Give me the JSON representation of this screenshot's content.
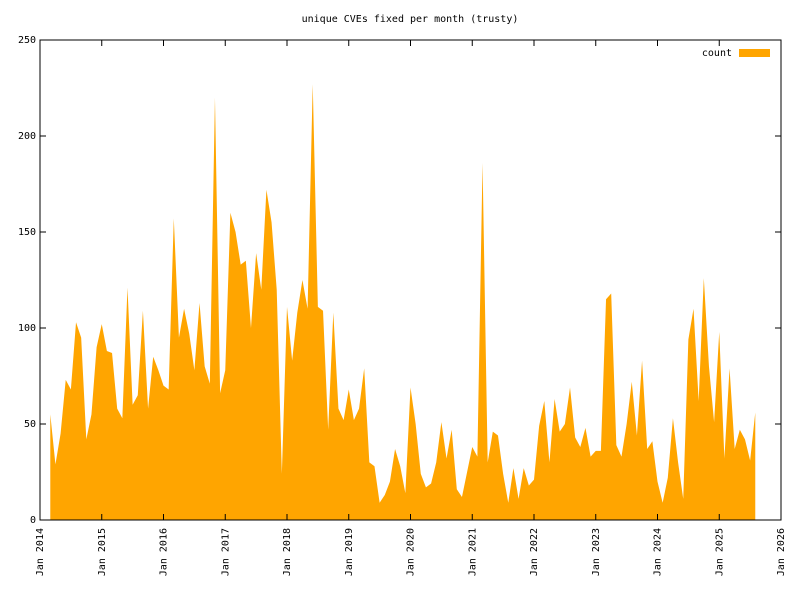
{
  "chart_data": {
    "type": "area",
    "title": "unique CVEs fixed per month (trusty)",
    "x": [
      "2014-03",
      "2014-04",
      "2014-05",
      "2014-06",
      "2014-07",
      "2014-08",
      "2014-09",
      "2014-10",
      "2014-11",
      "2014-12",
      "2015-01",
      "2015-02",
      "2015-03",
      "2015-04",
      "2015-05",
      "2015-06",
      "2015-07",
      "2015-08",
      "2015-09",
      "2015-10",
      "2015-11",
      "2015-12",
      "2016-01",
      "2016-02",
      "2016-03",
      "2016-04",
      "2016-05",
      "2016-06",
      "2016-07",
      "2016-08",
      "2016-09",
      "2016-10",
      "2016-11",
      "2016-12",
      "2017-01",
      "2017-02",
      "2017-03",
      "2017-04",
      "2017-05",
      "2017-06",
      "2017-07",
      "2017-08",
      "2017-09",
      "2017-10",
      "2017-11",
      "2017-12",
      "2018-01",
      "2018-02",
      "2018-03",
      "2018-04",
      "2018-05",
      "2018-06",
      "2018-07",
      "2018-08",
      "2018-09",
      "2018-10",
      "2018-11",
      "2018-12",
      "2019-01",
      "2019-02",
      "2019-03",
      "2019-04",
      "2019-05",
      "2019-06",
      "2019-07",
      "2019-08",
      "2019-09",
      "2019-10",
      "2019-11",
      "2019-12",
      "2020-01",
      "2020-02",
      "2020-03",
      "2020-04",
      "2020-05",
      "2020-06",
      "2020-07",
      "2020-08",
      "2020-09",
      "2020-10",
      "2020-11",
      "2020-12",
      "2021-01",
      "2021-02",
      "2021-03",
      "2021-04",
      "2021-05",
      "2021-06",
      "2021-07",
      "2021-08",
      "2021-09",
      "2021-10",
      "2021-11",
      "2021-12",
      "2022-01",
      "2022-02",
      "2022-03",
      "2022-04",
      "2022-05",
      "2022-06",
      "2022-07",
      "2022-08",
      "2022-09",
      "2022-10",
      "2022-11",
      "2022-12",
      "2023-01",
      "2023-02",
      "2023-03",
      "2023-04",
      "2023-05",
      "2023-06",
      "2023-07",
      "2023-08",
      "2023-09",
      "2023-10",
      "2023-11",
      "2023-12",
      "2024-01",
      "2024-02",
      "2024-03",
      "2024-04",
      "2024-05",
      "2024-06",
      "2024-07",
      "2024-08",
      "2024-09",
      "2024-10",
      "2024-11",
      "2024-12",
      "2025-01",
      "2025-02",
      "2025-03",
      "2025-04",
      "2025-05",
      "2025-06",
      "2025-07",
      "2025-08"
    ],
    "series": [
      {
        "name": "count",
        "color": "#ffa500",
        "values": [
          55,
          29,
          45,
          73,
          68,
          103,
          95,
          42,
          55,
          90,
          102,
          88,
          87,
          58,
          53,
          121,
          60,
          65,
          109,
          58,
          85,
          78,
          70,
          68,
          157,
          95,
          110,
          97,
          78,
          113,
          80,
          71,
          220,
          66,
          78,
          160,
          150,
          133,
          135,
          100,
          139,
          120,
          172,
          155,
          120,
          24,
          111,
          83,
          108,
          125,
          110,
          227,
          111,
          109,
          47,
          108,
          58,
          52,
          68,
          52,
          58,
          79,
          30,
          28,
          9,
          13,
          20,
          37,
          28,
          14,
          69,
          50,
          24,
          17,
          19,
          30,
          51,
          32,
          47,
          16,
          12,
          25,
          38,
          33,
          186,
          30,
          46,
          44,
          24,
          9,
          27,
          11,
          27,
          18,
          21,
          49,
          62,
          30,
          63,
          46,
          50,
          69,
          43,
          38,
          48,
          33,
          36,
          36,
          115,
          118,
          39,
          33,
          50,
          72,
          44,
          83,
          37,
          41,
          20,
          9,
          22,
          53,
          30,
          11,
          94,
          110,
          62,
          126,
          80,
          51,
          98,
          32,
          79,
          37,
          47,
          42,
          31,
          56
        ]
      }
    ],
    "xlim": [
      "2014-01",
      "2026-01"
    ],
    "xticks": [
      {
        "value": "2014-01",
        "label": "Jan 2014"
      },
      {
        "value": "2015-01",
        "label": "Jan 2015"
      },
      {
        "value": "2016-01",
        "label": "Jan 2016"
      },
      {
        "value": "2017-01",
        "label": "Jan 2017"
      },
      {
        "value": "2018-01",
        "label": "Jan 2018"
      },
      {
        "value": "2019-01",
        "label": "Jan 2019"
      },
      {
        "value": "2020-01",
        "label": "Jan 2020"
      },
      {
        "value": "2021-01",
        "label": "Jan 2021"
      },
      {
        "value": "2022-01",
        "label": "Jan 2022"
      },
      {
        "value": "2023-01",
        "label": "Jan 2023"
      },
      {
        "value": "2024-01",
        "label": "Jan 2024"
      },
      {
        "value": "2025-01",
        "label": "Jan 2025"
      },
      {
        "value": "2026-01",
        "label": "Jan 2026"
      }
    ],
    "ylim": [
      0,
      250
    ],
    "yticks": [
      0,
      50,
      100,
      150,
      200,
      250
    ],
    "legend": "top-right"
  }
}
